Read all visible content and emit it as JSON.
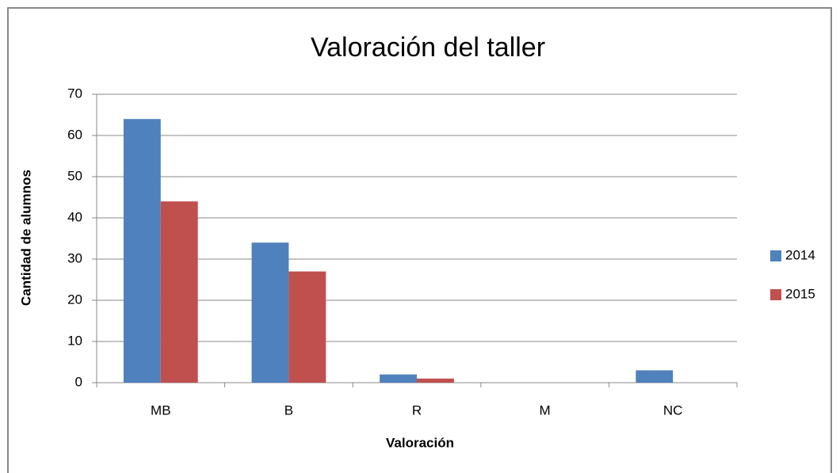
{
  "chart_data": {
    "type": "bar",
    "title": "Valoración del taller",
    "x_label": "Valoración",
    "y_label": "Cantidad de alumnos",
    "categories": [
      "MB",
      "B",
      "R",
      "M",
      "NC"
    ],
    "series": [
      {
        "name": "2014",
        "color": "#4f81bd",
        "values": [
          64,
          34,
          2,
          0,
          3
        ]
      },
      {
        "name": "2015",
        "color": "#c0504d",
        "values": [
          44,
          27,
          1,
          0,
          0
        ]
      }
    ],
    "ylim": [
      0,
      70
    ],
    "yticks": [
      0,
      10,
      20,
      30,
      40,
      50,
      60,
      70
    ],
    "grid": true,
    "legend": "right"
  }
}
